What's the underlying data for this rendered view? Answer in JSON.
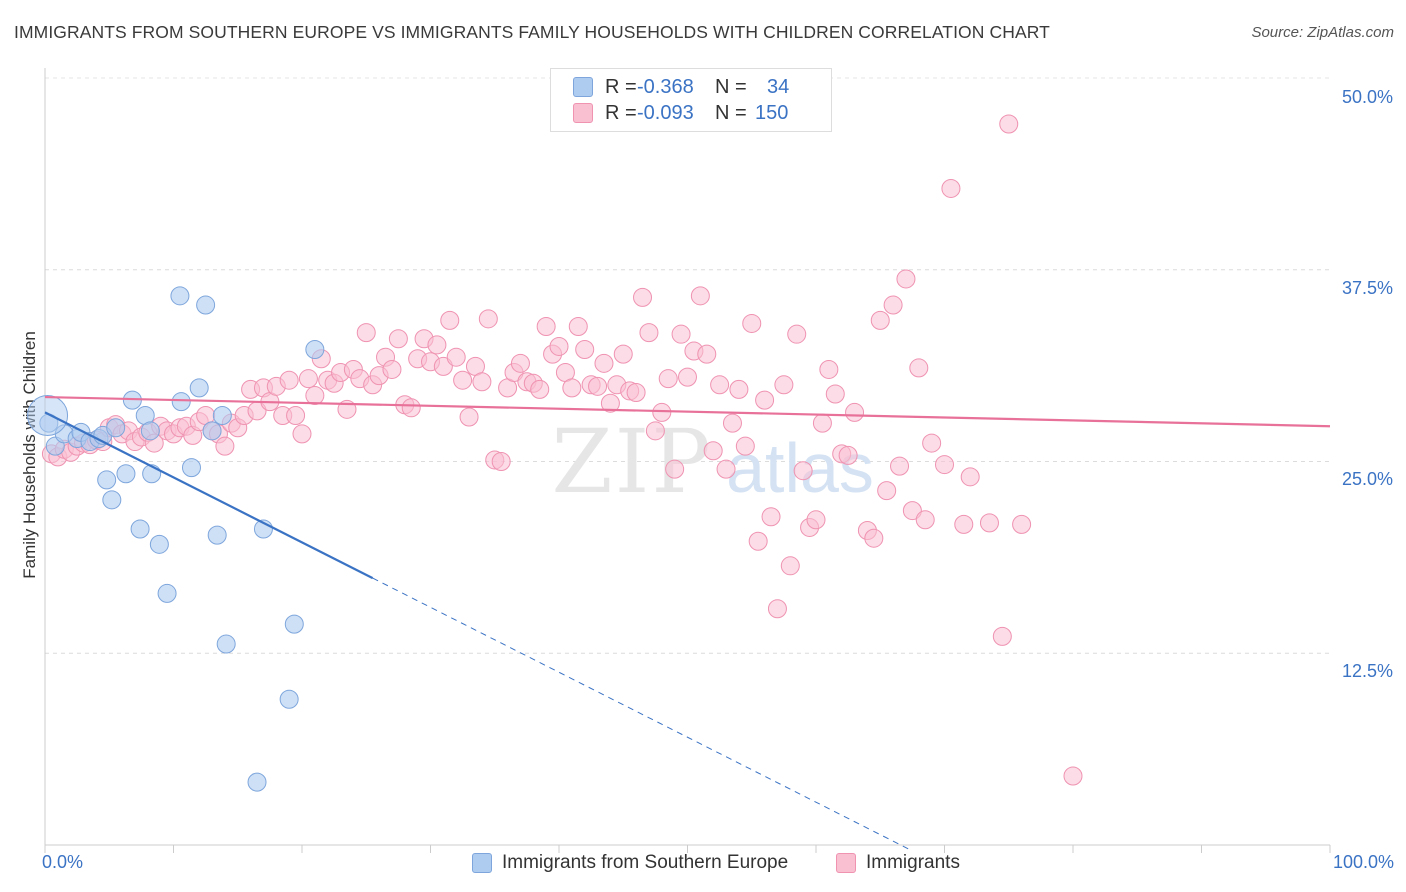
{
  "title": "IMMIGRANTS FROM SOUTHERN EUROPE VS IMMIGRANTS FAMILY HOUSEHOLDS WITH CHILDREN CORRELATION CHART",
  "source": "Source: ZipAtlas.com",
  "watermark": {
    "zip": "ZIP",
    "atlas": "atlas"
  },
  "legend_top": [
    {
      "r_label": "R =",
      "r_value": "-0.368",
      "n_label": "N =",
      "n_value": "34",
      "color": "#aecbf0",
      "border": "#7ea6dc"
    },
    {
      "r_label": "R =",
      "r_value": "-0.093",
      "n_label": "N =",
      "n_value": "150",
      "color": "#f9c0d2",
      "border": "#ef93b1"
    }
  ],
  "legend_bottom": [
    {
      "label": "Immigrants from Southern Europe",
      "color": "#aecbf0",
      "border": "#7ea6dc"
    },
    {
      "label": "Immigrants",
      "color": "#f9c0d2",
      "border": "#ef93b1"
    }
  ],
  "chart_data": {
    "type": "scatter",
    "xlabel": "",
    "ylabel": "Family Households with Children",
    "xlim": [
      0,
      100
    ],
    "ylim": [
      0,
      50
    ],
    "x_tick_labels": [
      "0.0%",
      "100.0%"
    ],
    "y_ticks": [
      12.5,
      25.0,
      37.5,
      50.0
    ],
    "y_tick_labels": [
      "12.5%",
      "25.0%",
      "37.5%",
      "50.0%"
    ],
    "grid": true,
    "colors": {
      "blue": "#3b73c4",
      "blue_fill": "#aecbf0",
      "pink": "#e8719a",
      "pink_fill": "#f9c0d2",
      "tick_label": "#3b73c4"
    },
    "series": [
      {
        "name": "Immigrants from Southern Europe",
        "color": "#aecbf0",
        "points": [
          [
            0.3,
            27.5
          ],
          [
            0.8,
            26.0
          ],
          [
            1.5,
            26.8
          ],
          [
            2.5,
            26.5
          ],
          [
            2.8,
            26.9
          ],
          [
            3.5,
            26.3
          ],
          [
            4.2,
            26.5
          ],
          [
            4.5,
            26.7
          ],
          [
            5.5,
            27.2
          ],
          [
            6.8,
            29.0
          ],
          [
            7.8,
            28.0
          ],
          [
            8.2,
            27.0
          ],
          [
            10.5,
            35.8
          ],
          [
            10.6,
            28.9
          ],
          [
            12.0,
            29.8
          ],
          [
            12.5,
            35.2
          ],
          [
            13.0,
            27.0
          ],
          [
            13.8,
            28.0
          ],
          [
            21.0,
            32.3
          ],
          [
            4.8,
            23.8
          ],
          [
            5.2,
            22.5
          ],
          [
            6.3,
            24.2
          ],
          [
            8.3,
            24.2
          ],
          [
            11.4,
            24.6
          ],
          [
            7.4,
            20.6
          ],
          [
            8.9,
            19.6
          ],
          [
            13.4,
            20.2
          ],
          [
            17.0,
            20.6
          ],
          [
            9.5,
            16.4
          ],
          [
            14.1,
            13.1
          ],
          [
            19.4,
            14.4
          ],
          [
            19.0,
            9.5
          ],
          [
            16.5,
            4.1
          ],
          [
            0.2,
            28.0
          ]
        ],
        "trend": {
          "x": [
            0,
            25.5
          ],
          "y": [
            28.2,
            17.4
          ],
          "dashed_to": [
            67.3,
            -0.3
          ]
        }
      },
      {
        "name": "Immigrants",
        "color": "#f9c0d2",
        "points": [
          [
            0.5,
            25.5
          ],
          [
            1.0,
            25.3
          ],
          [
            1.5,
            25.8
          ],
          [
            2.0,
            25.6
          ],
          [
            2.5,
            26.0
          ],
          [
            3.0,
            26.2
          ],
          [
            3.5,
            26.1
          ],
          [
            4.0,
            26.4
          ],
          [
            4.5,
            26.3
          ],
          [
            5.0,
            27.2
          ],
          [
            5.5,
            27.4
          ],
          [
            6.0,
            26.8
          ],
          [
            6.5,
            27.0
          ],
          [
            7.0,
            26.3
          ],
          [
            7.5,
            26.6
          ],
          [
            8.0,
            26.9
          ],
          [
            8.5,
            26.2
          ],
          [
            9.0,
            27.3
          ],
          [
            9.5,
            27.0
          ],
          [
            10.0,
            26.8
          ],
          [
            10.5,
            27.2
          ],
          [
            11.0,
            27.3
          ],
          [
            11.5,
            26.7
          ],
          [
            12.0,
            27.6
          ],
          [
            12.5,
            28.0
          ],
          [
            13.0,
            27.0
          ],
          [
            13.5,
            26.8
          ],
          [
            14.0,
            26.0
          ],
          [
            14.5,
            27.5
          ],
          [
            15.0,
            27.2
          ],
          [
            15.5,
            28.0
          ],
          [
            16.0,
            29.7
          ],
          [
            16.5,
            28.3
          ],
          [
            17.0,
            29.8
          ],
          [
            17.5,
            28.9
          ],
          [
            18.0,
            29.9
          ],
          [
            18.5,
            28.0
          ],
          [
            19.0,
            30.3
          ],
          [
            19.5,
            28.0
          ],
          [
            20.0,
            26.8
          ],
          [
            20.5,
            30.4
          ],
          [
            21.0,
            29.3
          ],
          [
            21.5,
            31.7
          ],
          [
            22.0,
            30.3
          ],
          [
            22.5,
            30.1
          ],
          [
            23.0,
            30.8
          ],
          [
            23.5,
            28.4
          ],
          [
            24.0,
            31.0
          ],
          [
            24.5,
            30.4
          ],
          [
            25.0,
            33.4
          ],
          [
            25.5,
            30.0
          ],
          [
            26.0,
            30.6
          ],
          [
            26.5,
            31.8
          ],
          [
            27.0,
            31.0
          ],
          [
            27.5,
            33.0
          ],
          [
            28.0,
            28.7
          ],
          [
            28.5,
            28.5
          ],
          [
            29.0,
            31.7
          ],
          [
            29.5,
            33.0
          ],
          [
            30.0,
            31.5
          ],
          [
            30.5,
            32.6
          ],
          [
            31.0,
            31.2
          ],
          [
            31.5,
            34.2
          ],
          [
            32.0,
            31.8
          ],
          [
            32.5,
            30.3
          ],
          [
            33.0,
            27.9
          ],
          [
            33.5,
            31.2
          ],
          [
            34.0,
            30.2
          ],
          [
            34.5,
            34.3
          ],
          [
            35.0,
            25.1
          ],
          [
            35.5,
            25.0
          ],
          [
            36.0,
            29.8
          ],
          [
            36.5,
            30.8
          ],
          [
            37.0,
            31.4
          ],
          [
            37.5,
            30.2
          ],
          [
            38.0,
            30.1
          ],
          [
            38.5,
            29.7
          ],
          [
            39.0,
            33.8
          ],
          [
            39.5,
            32.0
          ],
          [
            40.0,
            32.5
          ],
          [
            40.5,
            30.8
          ],
          [
            41.0,
            29.8
          ],
          [
            41.5,
            33.8
          ],
          [
            42.0,
            32.3
          ],
          [
            42.5,
            30.0
          ],
          [
            43.0,
            29.9
          ],
          [
            43.5,
            31.4
          ],
          [
            44.0,
            28.8
          ],
          [
            44.5,
            30.0
          ],
          [
            45.0,
            32.0
          ],
          [
            45.5,
            29.6
          ],
          [
            46.0,
            29.5
          ],
          [
            46.5,
            35.7
          ],
          [
            47.0,
            33.4
          ],
          [
            47.5,
            27.0
          ],
          [
            48.0,
            28.2
          ],
          [
            48.5,
            30.4
          ],
          [
            49.0,
            24.5
          ],
          [
            49.5,
            33.3
          ],
          [
            50.0,
            30.5
          ],
          [
            50.5,
            32.2
          ],
          [
            51.0,
            35.8
          ],
          [
            51.5,
            32.0
          ],
          [
            52.0,
            25.7
          ],
          [
            52.5,
            30.0
          ],
          [
            53.0,
            24.5
          ],
          [
            53.5,
            27.5
          ],
          [
            54.0,
            29.7
          ],
          [
            54.5,
            26.0
          ],
          [
            55.0,
            34.0
          ],
          [
            55.5,
            19.8
          ],
          [
            56.0,
            29.0
          ],
          [
            56.5,
            21.4
          ],
          [
            57.0,
            15.4
          ],
          [
            57.5,
            30.0
          ],
          [
            58.0,
            18.2
          ],
          [
            58.5,
            33.3
          ],
          [
            59.0,
            24.4
          ],
          [
            59.5,
            20.7
          ],
          [
            60.0,
            21.2
          ],
          [
            60.5,
            27.5
          ],
          [
            61.0,
            31.0
          ],
          [
            61.5,
            29.4
          ],
          [
            62.0,
            25.5
          ],
          [
            62.5,
            25.4
          ],
          [
            63.0,
            28.2
          ],
          [
            64.0,
            20.5
          ],
          [
            65.0,
            34.2
          ],
          [
            65.5,
            23.1
          ],
          [
            66.0,
            35.2
          ],
          [
            67.0,
            36.9
          ],
          [
            67.5,
            21.8
          ],
          [
            68.0,
            31.1
          ],
          [
            68.5,
            21.2
          ],
          [
            69.0,
            26.2
          ],
          [
            70.0,
            24.8
          ],
          [
            71.5,
            20.9
          ],
          [
            72.0,
            24.0
          ],
          [
            73.5,
            21.0
          ],
          [
            75.0,
            47.0
          ],
          [
            76.0,
            20.9
          ],
          [
            80.0,
            4.5
          ],
          [
            70.5,
            42.8
          ],
          [
            74.5,
            13.6
          ],
          [
            66.5,
            24.7
          ],
          [
            64.5,
            20.0
          ]
        ],
        "trend": {
          "x": [
            0,
            100
          ],
          "y": [
            29.2,
            27.3
          ]
        }
      }
    ]
  }
}
